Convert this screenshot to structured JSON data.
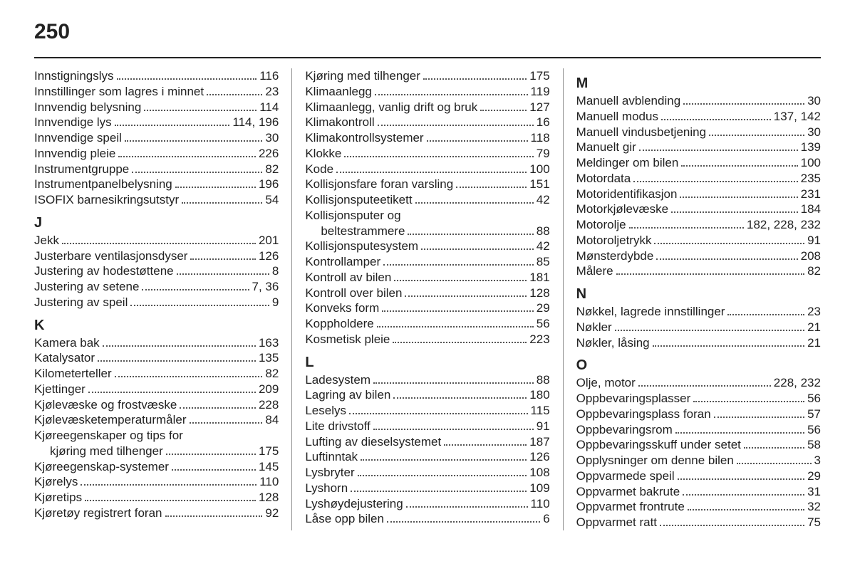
{
  "page_number": "250",
  "columns": [
    {
      "sections": [
        {
          "letter": null,
          "entries": [
            {
              "label": "Innstigningslys",
              "pages": "116"
            },
            {
              "label": "Innstillinger som lagres i minnet",
              "pages": "23"
            },
            {
              "label": "Innvendig belysning",
              "pages": "114"
            },
            {
              "label": "Innvendige lys",
              "pages": "114, 196"
            },
            {
              "label": "Innvendige speil",
              "pages": "30"
            },
            {
              "label": "Innvendig pleie",
              "pages": "226"
            },
            {
              "label": "Instrumentgruppe",
              "pages": "82"
            },
            {
              "label": "Instrumentpanelbelysning",
              "pages": "196"
            },
            {
              "label": "ISOFIX barnesikringsutstyr",
              "pages": "54"
            }
          ]
        },
        {
          "letter": "J",
          "entries": [
            {
              "label": "Jekk",
              "pages": "201"
            },
            {
              "label": "Justerbare ventilasjonsdyser",
              "pages": "126"
            },
            {
              "label": "Justering av hodestøttene",
              "pages": "8"
            },
            {
              "label": "Justering av setene",
              "pages": "7, 36"
            },
            {
              "label": "Justering av speil",
              "pages": "9"
            }
          ]
        },
        {
          "letter": "K",
          "entries": [
            {
              "label": "Kamera bak",
              "pages": "163"
            },
            {
              "label": "Katalysator",
              "pages": "135"
            },
            {
              "label": "Kilometerteller",
              "pages": "82"
            },
            {
              "label": "Kjettinger",
              "pages": "209"
            },
            {
              "label": "Kjølevæske og frostvæske",
              "pages": "228"
            },
            {
              "label": "Kjølevæsketemperaturmåler",
              "pages": "84"
            },
            {
              "label": "Kjøreegenskaper og tips for",
              "pages": null
            },
            {
              "label": "kjøring med tilhenger",
              "pages": "175",
              "continuation": true
            },
            {
              "label": "Kjøreegenskap-systemer",
              "pages": "145"
            },
            {
              "label": "Kjørelys",
              "pages": "110"
            },
            {
              "label": "Kjøretips",
              "pages": "128"
            },
            {
              "label": "Kjøretøy registrert foran",
              "pages": "92"
            }
          ]
        }
      ]
    },
    {
      "sections": [
        {
          "letter": null,
          "entries": [
            {
              "label": "Kjøring med tilhenger",
              "pages": "175"
            },
            {
              "label": "Klimaanlegg",
              "pages": "119"
            },
            {
              "label": "Klimaanlegg, vanlig drift og bruk",
              "pages": "127"
            },
            {
              "label": "Klimakontroll",
              "pages": "16"
            },
            {
              "label": "Klimakontrollsystemer",
              "pages": "118"
            },
            {
              "label": "Klokke",
              "pages": "79"
            },
            {
              "label": "Kode",
              "pages": "100"
            },
            {
              "label": "Kollisjonsfare foran varsling",
              "pages": "151"
            },
            {
              "label": "Kollisjonsputeetikett",
              "pages": "42"
            },
            {
              "label": "Kollisjonsputer og",
              "pages": null
            },
            {
              "label": "beltestrammere",
              "pages": "88",
              "continuation": true
            },
            {
              "label": "Kollisjonsputesystem",
              "pages": "42"
            },
            {
              "label": "Kontrollamper",
              "pages": "85"
            },
            {
              "label": "Kontroll av bilen",
              "pages": "181"
            },
            {
              "label": "Kontroll over bilen",
              "pages": "128"
            },
            {
              "label": "Konveks form",
              "pages": "29"
            },
            {
              "label": "Koppholdere",
              "pages": "56"
            },
            {
              "label": "Kosmetisk pleie",
              "pages": "223"
            }
          ]
        },
        {
          "letter": "L",
          "entries": [
            {
              "label": "Ladesystem",
              "pages": "88"
            },
            {
              "label": "Lagring av bilen",
              "pages": "180"
            },
            {
              "label": "Leselys",
              "pages": "115"
            },
            {
              "label": "Lite drivstoff",
              "pages": "91"
            },
            {
              "label": "Lufting av dieselsystemet",
              "pages": "187"
            },
            {
              "label": "Luftinntak",
              "pages": "126"
            },
            {
              "label": "Lysbryter",
              "pages": "108"
            },
            {
              "label": "Lyshorn",
              "pages": "109"
            },
            {
              "label": "Lyshøydejustering",
              "pages": "110"
            },
            {
              "label": "Låse opp bilen",
              "pages": "6"
            }
          ]
        }
      ]
    },
    {
      "sections": [
        {
          "letter": "M",
          "entries": [
            {
              "label": "Manuell avblending",
              "pages": "30"
            },
            {
              "label": "Manuell modus",
              "pages": "137, 142"
            },
            {
              "label": "Manuell vindusbetjening",
              "pages": "30"
            },
            {
              "label": "Manuelt gir",
              "pages": "139"
            },
            {
              "label": "Meldinger om bilen",
              "pages": "100"
            },
            {
              "label": "Motordata",
              "pages": "235"
            },
            {
              "label": "Motoridentifikasjon",
              "pages": "231"
            },
            {
              "label": "Motorkjølevæske",
              "pages": "184"
            },
            {
              "label": "Motorolje",
              "pages": "182, 228, 232"
            },
            {
              "label": "Motoroljetrykk",
              "pages": "91"
            },
            {
              "label": "Mønsterdybde",
              "pages": "208"
            },
            {
              "label": "Målere",
              "pages": "82"
            }
          ]
        },
        {
          "letter": "N",
          "entries": [
            {
              "label": "Nøkkel, lagrede innstillinger",
              "pages": "23"
            },
            {
              "label": "Nøkler",
              "pages": "21"
            },
            {
              "label": "Nøkler, låsing",
              "pages": "21"
            }
          ]
        },
        {
          "letter": "O",
          "entries": [
            {
              "label": "Olje, motor",
              "pages": "228, 232"
            },
            {
              "label": "Oppbevaringsplasser",
              "pages": "56"
            },
            {
              "label": "Oppbevaringsplass foran",
              "pages": "57"
            },
            {
              "label": "Oppbevaringsrom",
              "pages": "56"
            },
            {
              "label": "Oppbevaringsskuff under setet",
              "pages": "58"
            },
            {
              "label": "Opplysninger om denne bilen",
              "pages": "3"
            },
            {
              "label": "Oppvarmede speil",
              "pages": "29"
            },
            {
              "label": "Oppvarmet bakrute",
              "pages": "31"
            },
            {
              "label": "Oppvarmet frontrute",
              "pages": "32"
            },
            {
              "label": "Oppvarmet ratt",
              "pages": "75"
            }
          ]
        }
      ]
    }
  ]
}
